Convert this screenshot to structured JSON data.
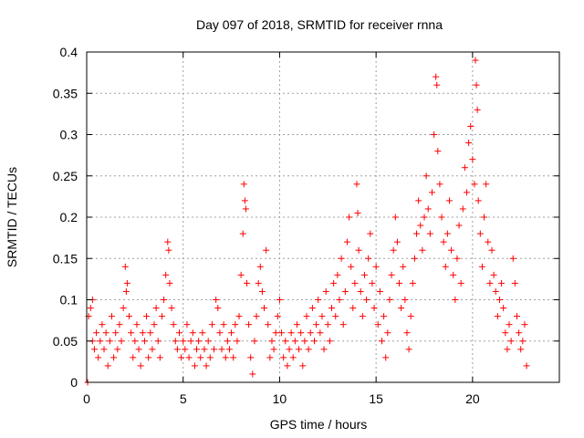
{
  "chart_data": {
    "type": "scatter",
    "title": "Day 097 of 2018, SRMTID for receiver rnna",
    "xlabel": "GPS time / hours",
    "ylabel": "SRMTID / TECUs",
    "xlim": [
      0,
      24.5
    ],
    "ylim": [
      0,
      0.4
    ],
    "xticks": [
      0,
      5,
      10,
      15,
      20
    ],
    "yticks": [
      0,
      0.05,
      0.1,
      0.15,
      0.2,
      0.25,
      0.3,
      0.35,
      0.4
    ],
    "xtick_labels": [
      "0",
      "5",
      "10",
      "15",
      "20"
    ],
    "ytick_labels": [
      "0",
      "0.05",
      "0.1",
      "0.15",
      "0.2",
      "0.25",
      "0.3",
      "0.35",
      "0.4"
    ],
    "grid": true,
    "marker": "+",
    "color": "#ff0000",
    "series": [
      {
        "name": "SRMTID",
        "points": [
          [
            0.05,
            0.0
          ],
          [
            0.1,
            0.08
          ],
          [
            0.2,
            0.09
          ],
          [
            0.3,
            0.1
          ],
          [
            0.3,
            0.05
          ],
          [
            0.4,
            0.04
          ],
          [
            0.5,
            0.06
          ],
          [
            0.6,
            0.03
          ],
          [
            0.7,
            0.05
          ],
          [
            0.8,
            0.07
          ],
          [
            0.9,
            0.04
          ],
          [
            1.0,
            0.06
          ],
          [
            1.1,
            0.02
          ],
          [
            1.2,
            0.05
          ],
          [
            1.3,
            0.08
          ],
          [
            1.4,
            0.03
          ],
          [
            1.5,
            0.06
          ],
          [
            1.6,
            0.04
          ],
          [
            1.7,
            0.07
          ],
          [
            1.8,
            0.05
          ],
          [
            1.9,
            0.09
          ],
          [
            2.0,
            0.14
          ],
          [
            2.05,
            0.11
          ],
          [
            2.1,
            0.12
          ],
          [
            2.2,
            0.08
          ],
          [
            2.3,
            0.06
          ],
          [
            2.4,
            0.03
          ],
          [
            2.5,
            0.05
          ],
          [
            2.6,
            0.07
          ],
          [
            2.7,
            0.04
          ],
          [
            2.8,
            0.02
          ],
          [
            2.9,
            0.06
          ],
          [
            3.0,
            0.05
          ],
          [
            3.1,
            0.08
          ],
          [
            3.2,
            0.03
          ],
          [
            3.3,
            0.06
          ],
          [
            3.4,
            0.04
          ],
          [
            3.5,
            0.07
          ],
          [
            3.6,
            0.09
          ],
          [
            3.7,
            0.05
          ],
          [
            3.8,
            0.03
          ],
          [
            3.9,
            0.08
          ],
          [
            4.0,
            0.1
          ],
          [
            4.1,
            0.13
          ],
          [
            4.2,
            0.17
          ],
          [
            4.25,
            0.16
          ],
          [
            4.3,
            0.12
          ],
          [
            4.4,
            0.09
          ],
          [
            4.5,
            0.07
          ],
          [
            4.6,
            0.05
          ],
          [
            4.7,
            0.04
          ],
          [
            4.8,
            0.06
          ],
          [
            4.9,
            0.03
          ],
          [
            5.0,
            0.05
          ],
          [
            5.1,
            0.04
          ],
          [
            5.2,
            0.07
          ],
          [
            5.3,
            0.03
          ],
          [
            5.4,
            0.05
          ],
          [
            5.5,
            0.06
          ],
          [
            5.6,
            0.02
          ],
          [
            5.7,
            0.04
          ],
          [
            5.8,
            0.05
          ],
          [
            5.9,
            0.03
          ],
          [
            6.0,
            0.06
          ],
          [
            6.1,
            0.04
          ],
          [
            6.2,
            0.02
          ],
          [
            6.3,
            0.05
          ],
          [
            6.4,
            0.03
          ],
          [
            6.5,
            0.07
          ],
          [
            6.6,
            0.04
          ],
          [
            6.7,
            0.1
          ],
          [
            6.8,
            0.09
          ],
          [
            6.9,
            0.06
          ],
          [
            7.0,
            0.04
          ],
          [
            7.1,
            0.07
          ],
          [
            7.2,
            0.03
          ],
          [
            7.3,
            0.05
          ],
          [
            7.4,
            0.04
          ],
          [
            7.5,
            0.06
          ],
          [
            7.6,
            0.03
          ],
          [
            7.7,
            0.07
          ],
          [
            7.8,
            0.05
          ],
          [
            7.9,
            0.08
          ],
          [
            8.0,
            0.13
          ],
          [
            8.1,
            0.18
          ],
          [
            8.15,
            0.24
          ],
          [
            8.2,
            0.22
          ],
          [
            8.25,
            0.21
          ],
          [
            8.3,
            0.12
          ],
          [
            8.4,
            0.07
          ],
          [
            8.5,
            0.03
          ],
          [
            8.6,
            0.01
          ],
          [
            8.7,
            0.05
          ],
          [
            8.8,
            0.08
          ],
          [
            8.9,
            0.12
          ],
          [
            9.0,
            0.14
          ],
          [
            9.1,
            0.11
          ],
          [
            9.2,
            0.09
          ],
          [
            9.3,
            0.16
          ],
          [
            9.4,
            0.07
          ],
          [
            9.5,
            0.03
          ],
          [
            9.6,
            0.05
          ],
          [
            9.7,
            0.04
          ],
          [
            9.8,
            0.06
          ],
          [
            9.9,
            0.08
          ],
          [
            10.0,
            0.1
          ],
          [
            10.1,
            0.06
          ],
          [
            10.2,
            0.03
          ],
          [
            10.3,
            0.05
          ],
          [
            10.4,
            0.02
          ],
          [
            10.5,
            0.04
          ],
          [
            10.6,
            0.06
          ],
          [
            10.7,
            0.03
          ],
          [
            10.8,
            0.05
          ],
          [
            10.9,
            0.07
          ],
          [
            11.0,
            0.04
          ],
          [
            11.1,
            0.06
          ],
          [
            11.2,
            0.02
          ],
          [
            11.3,
            0.05
          ],
          [
            11.4,
            0.08
          ],
          [
            11.5,
            0.04
          ],
          [
            11.6,
            0.06
          ],
          [
            11.7,
            0.09
          ],
          [
            11.8,
            0.05
          ],
          [
            11.9,
            0.07
          ],
          [
            12.0,
            0.1
          ],
          [
            12.1,
            0.06
          ],
          [
            12.2,
            0.08
          ],
          [
            12.3,
            0.04
          ],
          [
            12.4,
            0.11
          ],
          [
            12.5,
            0.07
          ],
          [
            12.6,
            0.05
          ],
          [
            12.7,
            0.09
          ],
          [
            12.8,
            0.12
          ],
          [
            12.9,
            0.08
          ],
          [
            13.0,
            0.13
          ],
          [
            13.1,
            0.1
          ],
          [
            13.2,
            0.15
          ],
          [
            13.3,
            0.07
          ],
          [
            13.4,
            0.11
          ],
          [
            13.5,
            0.17
          ],
          [
            13.6,
            0.2
          ],
          [
            13.7,
            0.14
          ],
          [
            13.8,
            0.09
          ],
          [
            13.9,
            0.12
          ],
          [
            14.0,
            0.24
          ],
          [
            14.05,
            0.205
          ],
          [
            14.1,
            0.16
          ],
          [
            14.2,
            0.11
          ],
          [
            14.3,
            0.08
          ],
          [
            14.4,
            0.13
          ],
          [
            14.5,
            0.1
          ],
          [
            14.6,
            0.15
          ],
          [
            14.7,
            0.18
          ],
          [
            14.8,
            0.12
          ],
          [
            14.9,
            0.09
          ],
          [
            15.0,
            0.14
          ],
          [
            15.1,
            0.07
          ],
          [
            15.2,
            0.11
          ],
          [
            15.3,
            0.05
          ],
          [
            15.4,
            0.08
          ],
          [
            15.5,
            0.03
          ],
          [
            15.6,
            0.06
          ],
          [
            15.7,
            0.1
          ],
          [
            15.8,
            0.13
          ],
          [
            15.9,
            0.16
          ],
          [
            16.0,
            0.2
          ],
          [
            16.1,
            0.17
          ],
          [
            16.2,
            0.12
          ],
          [
            16.3,
            0.09
          ],
          [
            16.4,
            0.14
          ],
          [
            16.5,
            0.1
          ],
          [
            16.6,
            0.06
          ],
          [
            16.7,
            0.04
          ],
          [
            16.8,
            0.08
          ],
          [
            16.9,
            0.12
          ],
          [
            17.0,
            0.15
          ],
          [
            17.1,
            0.18
          ],
          [
            17.2,
            0.22
          ],
          [
            17.3,
            0.19
          ],
          [
            17.4,
            0.16
          ],
          [
            17.5,
            0.2
          ],
          [
            17.6,
            0.25
          ],
          [
            17.7,
            0.21
          ],
          [
            17.8,
            0.18
          ],
          [
            17.9,
            0.23
          ],
          [
            18.0,
            0.3
          ],
          [
            18.1,
            0.37
          ],
          [
            18.15,
            0.36
          ],
          [
            18.2,
            0.28
          ],
          [
            18.3,
            0.24
          ],
          [
            18.4,
            0.2
          ],
          [
            18.5,
            0.17
          ],
          [
            18.6,
            0.14
          ],
          [
            18.7,
            0.18
          ],
          [
            18.8,
            0.22
          ],
          [
            18.9,
            0.16
          ],
          [
            19.0,
            0.13
          ],
          [
            19.1,
            0.1
          ],
          [
            19.2,
            0.15
          ],
          [
            19.3,
            0.19
          ],
          [
            19.4,
            0.12
          ],
          [
            19.5,
            0.21
          ],
          [
            19.6,
            0.26
          ],
          [
            19.7,
            0.23
          ],
          [
            19.8,
            0.29
          ],
          [
            19.9,
            0.31
          ],
          [
            20.0,
            0.27
          ],
          [
            20.1,
            0.24
          ],
          [
            20.15,
            0.39
          ],
          [
            20.2,
            0.36
          ],
          [
            20.25,
            0.33
          ],
          [
            20.3,
            0.22
          ],
          [
            20.4,
            0.18
          ],
          [
            20.5,
            0.14
          ],
          [
            20.6,
            0.2
          ],
          [
            20.7,
            0.24
          ],
          [
            20.8,
            0.17
          ],
          [
            20.9,
            0.12
          ],
          [
            21.0,
            0.16
          ],
          [
            21.1,
            0.13
          ],
          [
            21.2,
            0.11
          ],
          [
            21.3,
            0.08
          ],
          [
            21.4,
            0.1
          ],
          [
            21.5,
            0.12
          ],
          [
            21.6,
            0.09
          ],
          [
            21.7,
            0.06
          ],
          [
            21.8,
            0.04
          ],
          [
            21.9,
            0.07
          ],
          [
            22.0,
            0.05
          ],
          [
            22.1,
            0.15
          ],
          [
            22.2,
            0.12
          ],
          [
            22.3,
            0.08
          ],
          [
            22.4,
            0.06
          ],
          [
            22.5,
            0.04
          ],
          [
            22.6,
            0.05
          ],
          [
            22.7,
            0.07
          ],
          [
            22.8,
            0.02
          ]
        ]
      }
    ]
  }
}
